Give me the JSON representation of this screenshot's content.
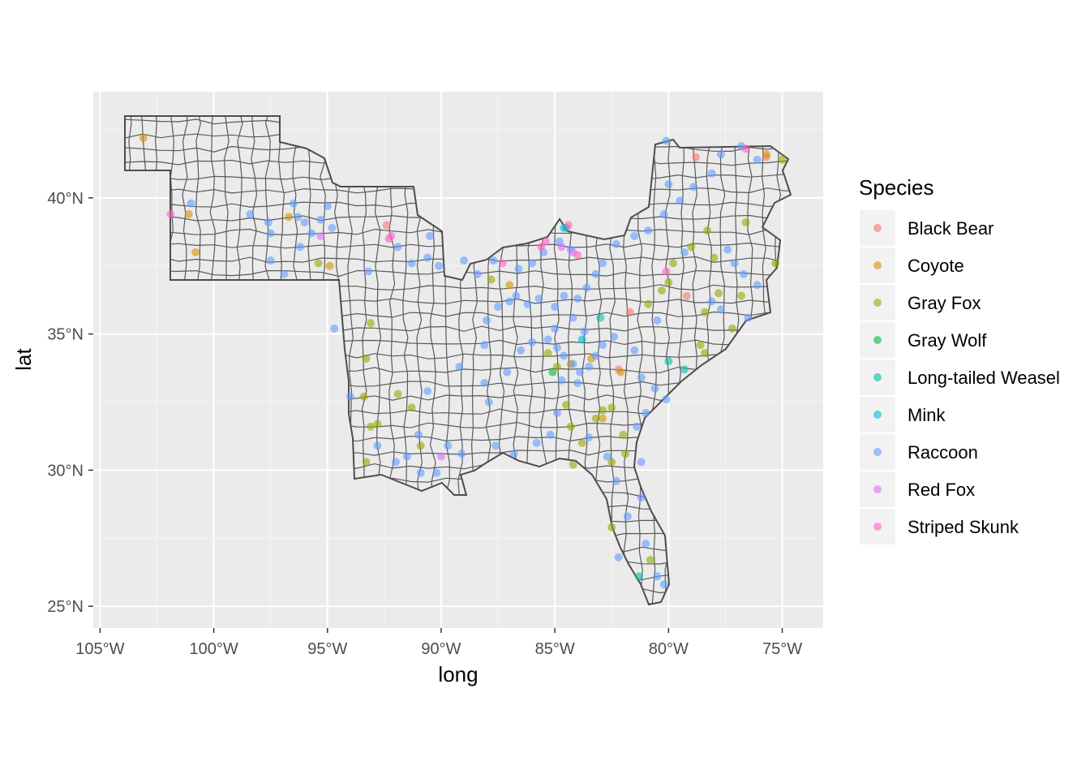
{
  "chart_data": {
    "type": "scatter",
    "title": "",
    "xlabel": "long",
    "ylabel": "lat",
    "xlim": [
      -105.3,
      -73.2
    ],
    "ylim": [
      24.2,
      43.9
    ],
    "x_ticks": [
      -105,
      -100,
      -95,
      -90,
      -85,
      -80,
      -75
    ],
    "x_tick_labels": [
      "105°W",
      "100°W",
      "95°W",
      "90°W",
      "85°W",
      "80°W",
      "75°W"
    ],
    "y_ticks": [
      25,
      30,
      35,
      40
    ],
    "y_tick_labels": [
      "25°N",
      "30°N",
      "35°N",
      "40°N"
    ],
    "grid": true,
    "legend_position": "right",
    "legend_title": "Species",
    "basemap": "county boundaries (gray fill, dark outlines)",
    "series": [
      {
        "name": "Black Bear",
        "color": "#F8766D",
        "points": [
          [
            -92.4,
            39.0
          ],
          [
            -82.2,
            33.7
          ],
          [
            -81.7,
            35.8
          ],
          [
            -79.2,
            36.4
          ],
          [
            -78.8,
            41.5
          ],
          [
            -75.7,
            41.5
          ]
        ]
      },
      {
        "name": "Coyote",
        "color": "#D39200",
        "points": [
          [
            -103.1,
            42.2
          ],
          [
            -101.1,
            39.4
          ],
          [
            -100.8,
            38.0
          ],
          [
            -96.7,
            39.3
          ],
          [
            -94.9,
            37.5
          ],
          [
            -87.0,
            36.8
          ],
          [
            -84.3,
            33.9
          ],
          [
            -83.4,
            34.1
          ],
          [
            -82.1,
            33.6
          ],
          [
            -82.9,
            31.9
          ],
          [
            -75.7,
            41.6
          ]
        ]
      },
      {
        "name": "Gray Fox",
        "color": "#93AA00",
        "points": [
          [
            -95.4,
            37.6
          ],
          [
            -93.3,
            34.1
          ],
          [
            -93.1,
            35.4
          ],
          [
            -93.4,
            32.7
          ],
          [
            -93.1,
            31.6
          ],
          [
            -92.8,
            31.7
          ],
          [
            -93.3,
            30.3
          ],
          [
            -91.9,
            32.8
          ],
          [
            -91.3,
            32.3
          ],
          [
            -90.9,
            30.9
          ],
          [
            -87.8,
            37.0
          ],
          [
            -85.3,
            34.3
          ],
          [
            -84.9,
            33.8
          ],
          [
            -84.5,
            32.4
          ],
          [
            -84.3,
            31.6
          ],
          [
            -83.8,
            31.0
          ],
          [
            -83.2,
            31.9
          ],
          [
            -82.9,
            32.2
          ],
          [
            -82.5,
            32.3
          ],
          [
            -82.0,
            31.3
          ],
          [
            -81.9,
            30.6
          ],
          [
            -80.9,
            36.1
          ],
          [
            -80.3,
            36.6
          ],
          [
            -80.0,
            36.9
          ],
          [
            -79.8,
            37.6
          ],
          [
            -79.0,
            38.2
          ],
          [
            -78.3,
            38.8
          ],
          [
            -78.0,
            37.8
          ],
          [
            -77.8,
            36.5
          ],
          [
            -78.4,
            35.8
          ],
          [
            -78.6,
            34.6
          ],
          [
            -78.4,
            34.3
          ],
          [
            -76.8,
            36.4
          ],
          [
            -77.2,
            35.2
          ],
          [
            -76.6,
            39.1
          ],
          [
            -75.3,
            37.6
          ],
          [
            -75.0,
            41.4
          ],
          [
            -80.8,
            26.7
          ],
          [
            -82.5,
            27.9
          ],
          [
            -82.5,
            30.3
          ],
          [
            -84.2,
            30.2
          ]
        ]
      },
      {
        "name": "Gray Wolf",
        "color": "#00BA38",
        "points": [
          [
            -85.1,
            33.6
          ]
        ]
      },
      {
        "name": "Long-tailed Weasel",
        "color": "#00C19F",
        "points": [
          [
            -84.5,
            38.9
          ],
          [
            -83.0,
            35.6
          ],
          [
            -81.3,
            26.1
          ],
          [
            -79.3,
            33.7
          ],
          [
            -80.0,
            34.0
          ]
        ]
      },
      {
        "name": "Mink",
        "color": "#00B9E3",
        "points": [
          [
            -84.6,
            38.9
          ],
          [
            -83.8,
            34.8
          ]
        ]
      },
      {
        "name": "Raccoon",
        "color": "#619CFF",
        "points": [
          [
            -101.0,
            39.8
          ],
          [
            -98.4,
            39.4
          ],
          [
            -97.6,
            39.1
          ],
          [
            -97.5,
            38.7
          ],
          [
            -96.5,
            39.8
          ],
          [
            -96.3,
            39.3
          ],
          [
            -96.0,
            39.1
          ],
          [
            -95.7,
            38.7
          ],
          [
            -95.3,
            39.2
          ],
          [
            -95.0,
            39.7
          ],
          [
            -94.8,
            38.9
          ],
          [
            -96.2,
            38.2
          ],
          [
            -97.5,
            37.7
          ],
          [
            -96.9,
            37.2
          ],
          [
            -93.2,
            37.3
          ],
          [
            -91.9,
            38.2
          ],
          [
            -90.5,
            38.6
          ],
          [
            -90.1,
            37.5
          ],
          [
            -94.7,
            35.2
          ],
          [
            -94.0,
            32.7
          ],
          [
            -92.8,
            30.9
          ],
          [
            -92.0,
            30.3
          ],
          [
            -91.5,
            30.5
          ],
          [
            -90.9,
            29.9
          ],
          [
            -90.2,
            29.9
          ],
          [
            -91.0,
            31.3
          ],
          [
            -89.7,
            30.9
          ],
          [
            -89.1,
            30.6
          ],
          [
            -90.6,
            32.9
          ],
          [
            -89.2,
            33.8
          ],
          [
            -88.1,
            34.6
          ],
          [
            -88.0,
            35.5
          ],
          [
            -87.5,
            36.0
          ],
          [
            -87.0,
            36.2
          ],
          [
            -86.7,
            36.4
          ],
          [
            -86.2,
            36.1
          ],
          [
            -85.7,
            36.3
          ],
          [
            -85.0,
            36.0
          ],
          [
            -84.6,
            36.4
          ],
          [
            -84.0,
            36.3
          ],
          [
            -83.6,
            36.7
          ],
          [
            -83.2,
            37.2
          ],
          [
            -82.9,
            37.6
          ],
          [
            -82.3,
            38.3
          ],
          [
            -81.5,
            38.6
          ],
          [
            -80.9,
            38.8
          ],
          [
            -80.2,
            39.4
          ],
          [
            -79.5,
            39.9
          ],
          [
            -78.9,
            40.4
          ],
          [
            -78.1,
            40.9
          ],
          [
            -77.7,
            41.6
          ],
          [
            -76.8,
            41.9
          ],
          [
            -76.1,
            41.4
          ],
          [
            -80.1,
            42.1
          ],
          [
            -80.0,
            40.5
          ],
          [
            -79.3,
            38.0
          ],
          [
            -77.4,
            38.1
          ],
          [
            -77.1,
            37.6
          ],
          [
            -76.7,
            37.2
          ],
          [
            -76.1,
            36.8
          ],
          [
            -76.5,
            35.6
          ],
          [
            -77.7,
            35.9
          ],
          [
            -78.1,
            36.2
          ],
          [
            -80.5,
            35.5
          ],
          [
            -81.5,
            34.4
          ],
          [
            -81.2,
            33.4
          ],
          [
            -80.6,
            33.0
          ],
          [
            -80.1,
            32.6
          ],
          [
            -81.0,
            32.1
          ],
          [
            -81.4,
            31.6
          ],
          [
            -81.2,
            30.3
          ],
          [
            -81.2,
            29.0
          ],
          [
            -81.0,
            27.3
          ],
          [
            -80.5,
            26.1
          ],
          [
            -80.2,
            25.8
          ],
          [
            -82.2,
            26.8
          ],
          [
            -81.8,
            28.3
          ],
          [
            -82.3,
            29.6
          ],
          [
            -82.7,
            30.5
          ],
          [
            -83.5,
            31.2
          ],
          [
            -84.9,
            32.1
          ],
          [
            -85.2,
            31.3
          ],
          [
            -85.8,
            31.0
          ],
          [
            -86.8,
            30.6
          ],
          [
            -87.6,
            30.9
          ],
          [
            -87.9,
            32.5
          ],
          [
            -88.1,
            33.2
          ],
          [
            -87.1,
            33.6
          ],
          [
            -86.5,
            34.4
          ],
          [
            -86.0,
            34.7
          ],
          [
            -85.3,
            34.8
          ],
          [
            -84.9,
            34.5
          ],
          [
            -84.6,
            34.2
          ],
          [
            -84.2,
            33.9
          ],
          [
            -83.9,
            33.6
          ],
          [
            -83.5,
            33.8
          ],
          [
            -83.2,
            34.2
          ],
          [
            -82.9,
            34.6
          ],
          [
            -82.4,
            34.9
          ],
          [
            -84.0,
            33.2
          ],
          [
            -84.7,
            33.3
          ],
          [
            -85.0,
            35.2
          ],
          [
            -84.2,
            35.6
          ],
          [
            -83.7,
            35.1
          ],
          [
            -84.3,
            38.1
          ],
          [
            -84.8,
            38.4
          ],
          [
            -85.5,
            38.0
          ],
          [
            -86.0,
            37.6
          ],
          [
            -86.6,
            37.4
          ],
          [
            -87.7,
            37.7
          ],
          [
            -88.4,
            37.2
          ],
          [
            -89.0,
            37.7
          ],
          [
            -90.6,
            37.8
          ],
          [
            -91.3,
            37.6
          ]
        ]
      },
      {
        "name": "Red Fox",
        "color": "#DB72FB",
        "points": [
          [
            -95.3,
            38.6
          ],
          [
            -90.0,
            30.5
          ],
          [
            -84.7,
            38.2
          ],
          [
            -84.2,
            38.0
          ]
        ]
      },
      {
        "name": "Striped Skunk",
        "color": "#FF61C3",
        "points": [
          [
            -101.9,
            39.4
          ],
          [
            -92.3,
            38.5
          ],
          [
            -92.2,
            38.6
          ],
          [
            -87.3,
            37.6
          ],
          [
            -85.6,
            38.2
          ],
          [
            -85.4,
            38.4
          ],
          [
            -84.4,
            39.0
          ],
          [
            -84.0,
            37.9
          ],
          [
            -80.1,
            37.3
          ],
          [
            -76.6,
            41.8
          ]
        ]
      }
    ]
  }
}
